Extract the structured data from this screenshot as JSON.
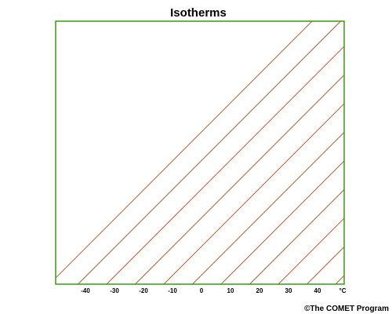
{
  "title": "Isotherms",
  "credit": "©The COMET Program",
  "x_axis": {
    "tick_labels": [
      "-40",
      "-30",
      "-20",
      "-10",
      "0",
      "10",
      "20",
      "30",
      "40"
    ],
    "unit": "°C"
  },
  "colors": {
    "frame": "#3a9a12",
    "isotherm": "#b5471c",
    "text": "#000000"
  }
}
